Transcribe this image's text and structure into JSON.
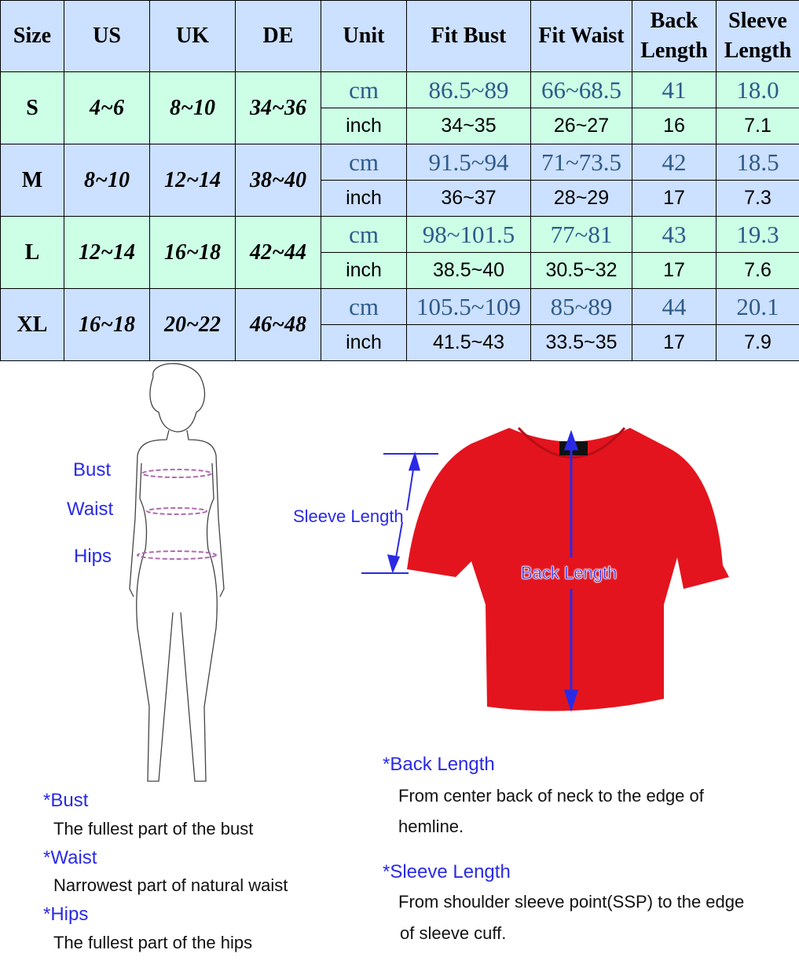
{
  "table": {
    "headers": [
      "Size",
      "US",
      "UK",
      "DE",
      "Unit",
      "Fit Bust",
      "Fit Waist",
      "Back Length",
      "Sleeve Length"
    ],
    "rows": [
      {
        "size": "S",
        "us": "4~6",
        "uk": "8~10",
        "de": "34~36",
        "cm": {
          "unit": "cm",
          "bust": "86.5~89",
          "waist": "66~68.5",
          "back": "41",
          "sleeve": "18.0"
        },
        "inch": {
          "unit": "inch",
          "bust": "34~35",
          "waist": "26~27",
          "back": "16",
          "sleeve": "7.1"
        }
      },
      {
        "size": "M",
        "us": "8~10",
        "uk": "12~14",
        "de": "38~40",
        "cm": {
          "unit": "cm",
          "bust": "91.5~94",
          "waist": "71~73.5",
          "back": "42",
          "sleeve": "18.5"
        },
        "inch": {
          "unit": "inch",
          "bust": "36~37",
          "waist": "28~29",
          "back": "17",
          "sleeve": "7.3"
        }
      },
      {
        "size": "L",
        "us": "12~14",
        "uk": "16~18",
        "de": "42~44",
        "cm": {
          "unit": "cm",
          "bust": "98~101.5",
          "waist": "77~81",
          "back": "43",
          "sleeve": "19.3"
        },
        "inch": {
          "unit": "inch",
          "bust": "38.5~40",
          "waist": "30.5~32",
          "back": "17",
          "sleeve": "7.6"
        }
      },
      {
        "size": "XL",
        "us": "16~18",
        "uk": "20~22",
        "de": "46~48",
        "cm": {
          "unit": "cm",
          "bust": "105.5~109",
          "waist": "85~89",
          "back": "44",
          "sleeve": "20.1"
        },
        "inch": {
          "unit": "inch",
          "bust": "41.5~43",
          "waist": "33.5~35",
          "back": "17",
          "sleeve": "7.9"
        }
      }
    ],
    "colors": {
      "header": "#cce0ff",
      "green_row": "#ccffe6",
      "blue_row": "#cce0ff",
      "cm_text": "#2e5b8a"
    }
  },
  "figure": {
    "bust": "Bust",
    "waist": "Waist",
    "hips": "Hips"
  },
  "garment": {
    "sleeve_length": "Sleeve Length",
    "back_length": "Back Length",
    "color": "#e3141e"
  },
  "definitions": {
    "bust_title": "*Bust",
    "bust_text": "The fullest part of the bust",
    "waist_title": "*Waist",
    "waist_text": "Narrowest part of natural waist",
    "hips_title": "*Hips",
    "hips_text": "The fullest part of the hips",
    "back_title": "*Back Length",
    "back_text_1": "From center back of neck to the edge of",
    "back_text_2": "hemline.",
    "sleeve_title": "*Sleeve Length",
    "sleeve_text_1": "From shoulder sleeve point(SSP) to the edge",
    "sleeve_text_2": "of sleeve cuff."
  },
  "label_color": "#2a2ae6"
}
